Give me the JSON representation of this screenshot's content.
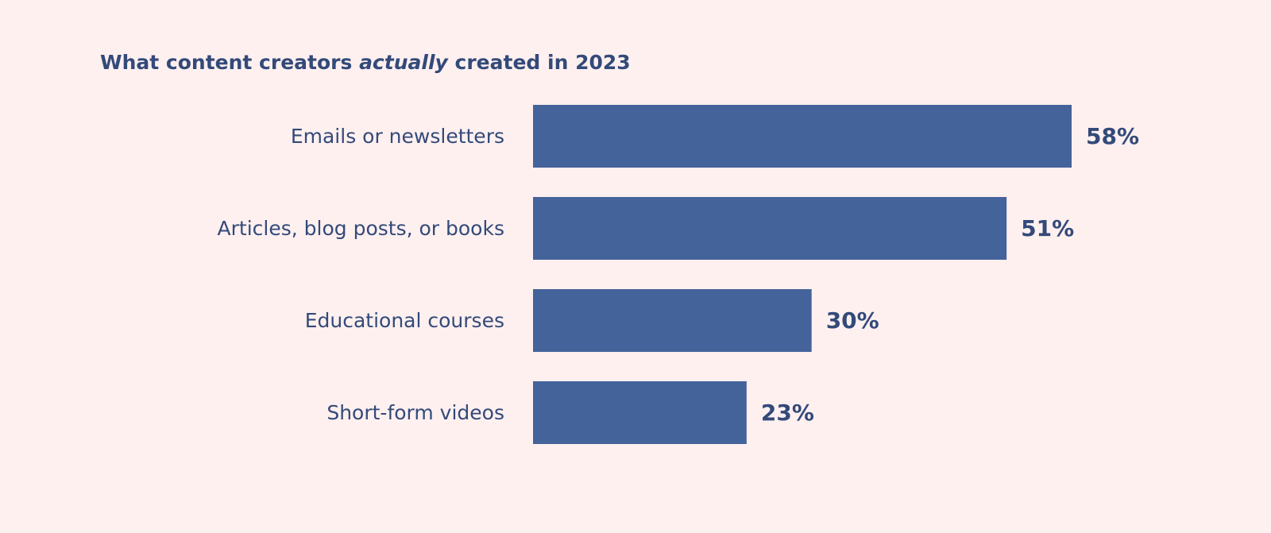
{
  "chart_data": {
    "type": "bar",
    "orientation": "horizontal",
    "title_parts": {
      "before": "What content creators ",
      "emphasis": "actually",
      "after": " created in 2023"
    },
    "categories": [
      "Emails or newsletters",
      "Articles, blog posts, or books",
      "Educational courses",
      "Short-form videos"
    ],
    "values": [
      58,
      51,
      30,
      23
    ],
    "value_labels": [
      "58%",
      "51%",
      "30%",
      "23%"
    ],
    "unit": "%",
    "xlim": [
      0,
      58
    ],
    "grid": false,
    "legend": "none",
    "bar_color": "#44639a",
    "text_color": "#334a79",
    "background": "#fff0f0"
  }
}
